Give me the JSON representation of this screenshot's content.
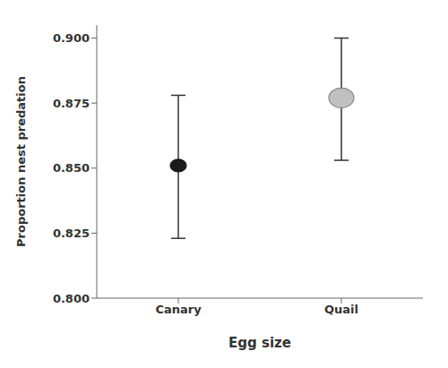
{
  "chart_data": {
    "type": "scatter",
    "categories": [
      "Canary",
      "Quail"
    ],
    "values": [
      0.851,
      0.877
    ],
    "ci_upper": [
      0.878,
      0.9
    ],
    "ci_lower": [
      0.823,
      0.853
    ],
    "colors": [
      "#1a1a1a",
      "#c0c0c0"
    ],
    "xlabel": "Egg size",
    "ylabel": "Proportion nest predation",
    "ylim": [
      0.8,
      0.905
    ],
    "yticks": [
      {
        "value": 0.8,
        "label": "0.800"
      },
      0.825,
      {
        "value": 0.85,
        "label": "0.850"
      },
      0.875,
      {
        "value": 0.9,
        "label": "0.900"
      }
    ],
    "grid": false
  }
}
